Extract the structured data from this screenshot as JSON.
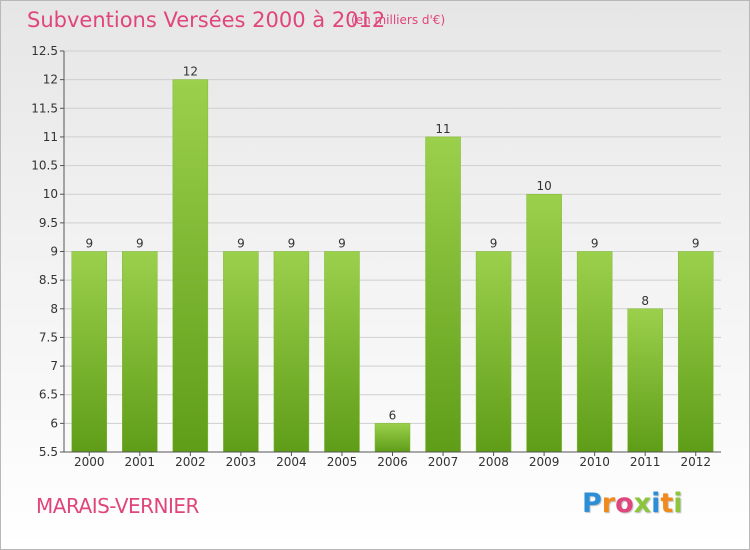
{
  "header": {
    "title": "Subventions Versées 2000 à 2012",
    "unit": "(en milliers d'€)"
  },
  "footer": {
    "commune": "MARAIS-VERNIER",
    "logo": "Proxiti",
    "logo_colors": [
      "#2a8fd6",
      "#f08a1c",
      "#e0457b",
      "#8cc63f",
      "#2a8fd6",
      "#f08a1c",
      "#8cc63f"
    ]
  },
  "colors": {
    "title": "#e0457b",
    "bar_top": "#9bd04c",
    "bar_bottom": "#5f9d18",
    "grid": "#cfcfcf",
    "axis": "#555555"
  },
  "chart_data": {
    "type": "bar",
    "categories": [
      "2000",
      "2001",
      "2002",
      "2003",
      "2004",
      "2005",
      "2006",
      "2007",
      "2008",
      "2009",
      "2010",
      "2011",
      "2012"
    ],
    "values": [
      9,
      9,
      12,
      9,
      9,
      9,
      6,
      11,
      9,
      10,
      9,
      8,
      9
    ],
    "title": "Subventions Versées 2000 à 2012",
    "subtitle": "(en milliers d'€)",
    "ylim": [
      5.5,
      12.5
    ],
    "yticks": [
      5.5,
      6,
      6.5,
      7,
      7.5,
      8,
      8.5,
      9,
      9.5,
      10,
      10.5,
      11,
      11.5,
      12,
      12.5
    ],
    "grid": true,
    "data_labels": true
  }
}
